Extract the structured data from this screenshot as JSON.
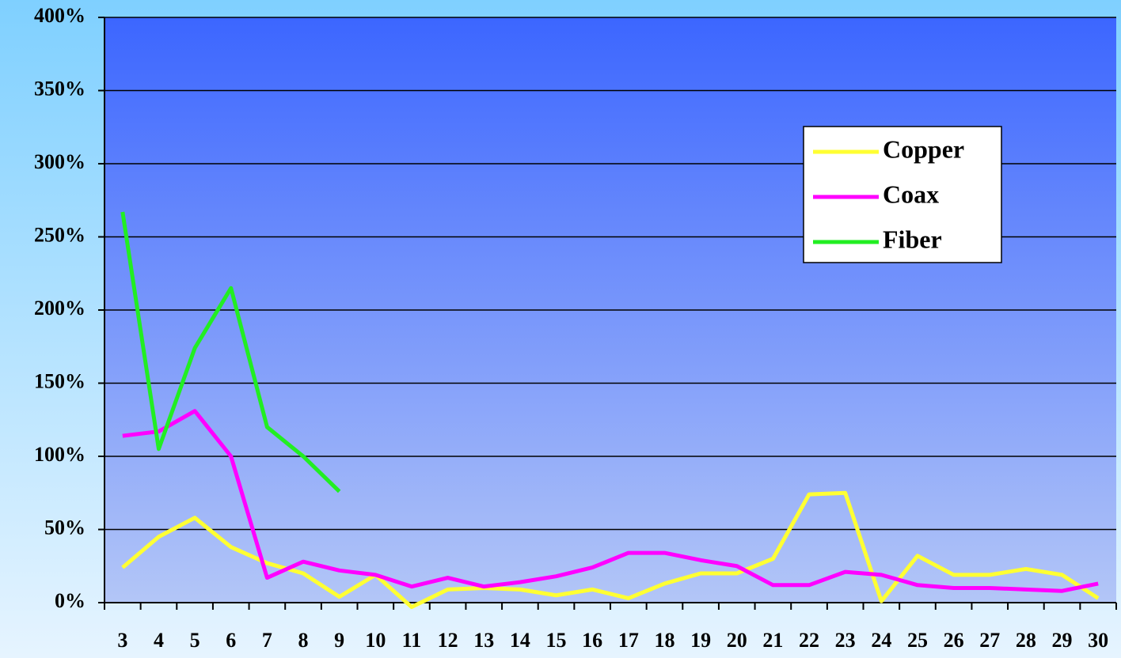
{
  "chart_data": {
    "type": "line",
    "categories": [
      "3",
      "4",
      "5",
      "6",
      "7",
      "8",
      "9",
      "10",
      "11",
      "12",
      "13",
      "14",
      "15",
      "16",
      "17",
      "18",
      "19",
      "20",
      "21",
      "22",
      "23",
      "24",
      "25",
      "26",
      "27",
      "28",
      "29",
      "30"
    ],
    "series": [
      {
        "name": "Copper",
        "color": "#ffff33",
        "values": [
          24,
          45,
          58,
          38,
          27,
          20,
          4,
          19,
          -3,
          9,
          10,
          9,
          5,
          9,
          3,
          13,
          20,
          20,
          30,
          74,
          75,
          1,
          32,
          19,
          19,
          23,
          19,
          3
        ]
      },
      {
        "name": "Coax",
        "color": "#ff00ff",
        "values": [
          114,
          117,
          131,
          100,
          17,
          28,
          22,
          19,
          11,
          17,
          11,
          14,
          18,
          24,
          34,
          34,
          29,
          25,
          12,
          12,
          21,
          19,
          12,
          10,
          10,
          9,
          8,
          13
        ]
      },
      {
        "name": "Fiber",
        "color": "#22ee22",
        "values": [
          267,
          105,
          174,
          215,
          120,
          100,
          76,
          null,
          null,
          null,
          null,
          null,
          null,
          null,
          null,
          null,
          null,
          null,
          null,
          null,
          null,
          null,
          null,
          null,
          null,
          null,
          null,
          null
        ]
      }
    ],
    "ylim": [
      0,
      400
    ],
    "yticks": [
      {
        "value": 0,
        "label": "0%"
      },
      {
        "value": 50,
        "label": "50%"
      },
      {
        "value": 100,
        "label": "100%"
      },
      {
        "value": 150,
        "label": "150%"
      },
      {
        "value": 200,
        "label": "200%"
      },
      {
        "value": 250,
        "label": "250%"
      },
      {
        "value": 300,
        "label": "300%"
      },
      {
        "value": 350,
        "label": "350%"
      },
      {
        "value": 400,
        "label": "400%"
      }
    ],
    "grid": true,
    "legend": "upper right"
  }
}
